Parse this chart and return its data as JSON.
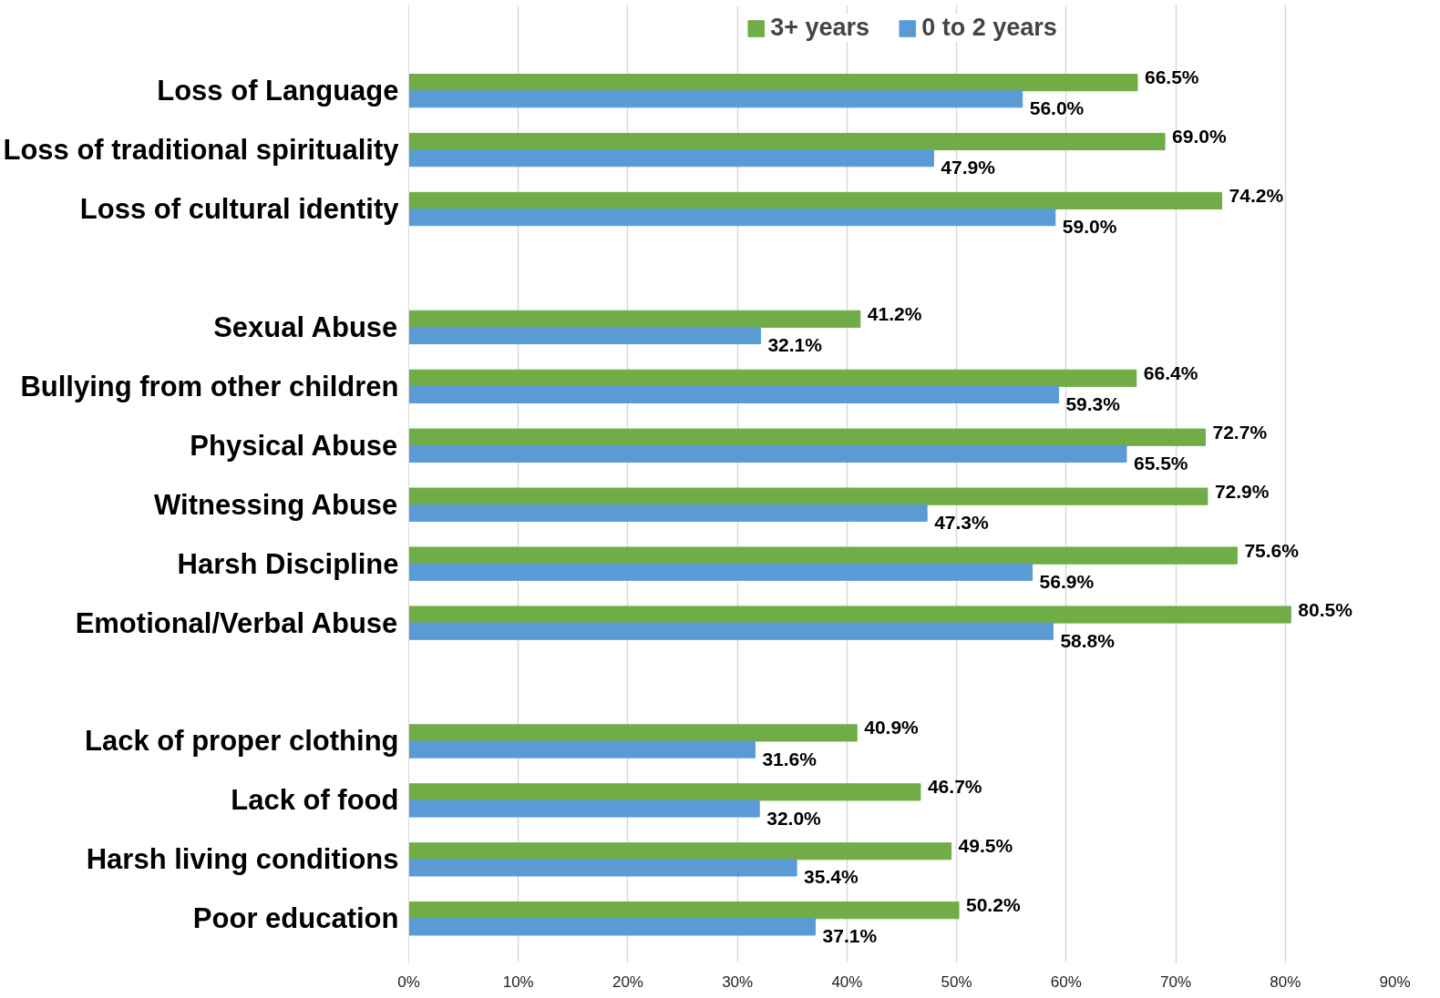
{
  "chart_data": {
    "type": "bar",
    "orientation": "horizontal",
    "categories": [
      "Loss of Language",
      "Loss of traditional spirituality",
      "Loss of cultural identity",
      null,
      "Sexual Abuse",
      "Bullying from other children",
      "Physical Abuse",
      "Witnessing Abuse",
      "Harsh Discipline",
      "Emotional/Verbal Abuse",
      null,
      "Lack of proper clothing",
      "Lack of food",
      "Harsh living conditions",
      "Poor education"
    ],
    "series": [
      {
        "name": "3+ years",
        "color": "#70ad47",
        "values": [
          66.5,
          69.0,
          74.2,
          null,
          41.2,
          66.4,
          72.7,
          72.9,
          75.6,
          80.5,
          null,
          40.9,
          46.7,
          49.5,
          50.2
        ],
        "value_labels": [
          "66.5%",
          "69.0%",
          "74.2%",
          null,
          "41.2%",
          "66.4%",
          "72.7%",
          "72.9%",
          "75.6%",
          "80.5%",
          null,
          "40.9%",
          "46.7%",
          "49.5%",
          "50.2%"
        ]
      },
      {
        "name": "0 to 2 years",
        "color": "#5b9bd5",
        "values": [
          56.0,
          47.9,
          59.0,
          null,
          32.1,
          59.3,
          65.5,
          47.3,
          56.9,
          58.8,
          null,
          31.6,
          32.0,
          35.4,
          37.1
        ],
        "value_labels": [
          "56.0%",
          "47.9%",
          "59.0%",
          null,
          "32.1%",
          "59.3%",
          "65.5%",
          "47.3%",
          "56.9%",
          "58.8%",
          null,
          "31.6%",
          "32.0%",
          "35.4%",
          "37.1%"
        ]
      }
    ],
    "xlim": [
      0,
      90
    ],
    "xticks": [
      {
        "value": 0,
        "label": "0%"
      },
      {
        "value": 10,
        "label": "10%"
      },
      {
        "value": 20,
        "label": "20%"
      },
      {
        "value": 30,
        "label": "30%"
      },
      {
        "value": 40,
        "label": "40%"
      },
      {
        "value": 50,
        "label": "50%"
      },
      {
        "value": 60,
        "label": "60%"
      },
      {
        "value": 70,
        "label": "70%"
      },
      {
        "value": 80,
        "label": "80%"
      },
      {
        "value": 90,
        "label": "90%"
      }
    ],
    "grid": "x",
    "legend": "top"
  }
}
